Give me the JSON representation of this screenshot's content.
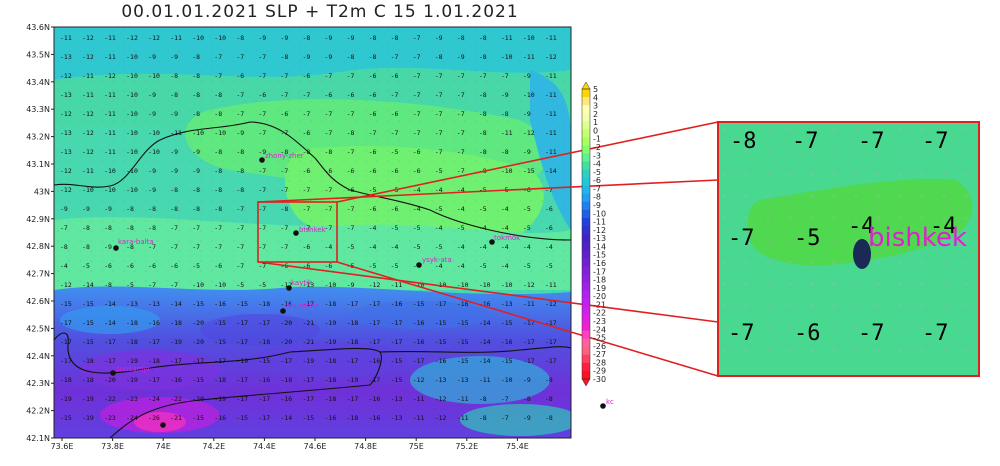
{
  "title": "00.01.01.2021 SLP + T2m C 15 1.01.2021",
  "map": {
    "lat_labels": [
      "43.6N",
      "43.5N",
      "43.4N",
      "43.3N",
      "43.2N",
      "43.1N",
      "43N",
      "42.9N",
      "42.8N",
      "42.7N",
      "42.6N",
      "42.5N",
      "42.4N",
      "42.3N",
      "42.2N",
      "42.1N"
    ],
    "lon_labels": [
      "73.6E",
      "73.8E",
      "74E",
      "74.2E",
      "74.4E",
      "74.6E",
      "74.8E",
      "75E",
      "75.2E",
      "75.4E"
    ],
    "grid_rows": [
      "-11 -12 -11 -12 -12 -11 -10 -10 -8 -9 -9 -8 -9 -9 -8 -8 -7 -9 -8 -8 -11 -10 -11",
      "-13 -12 -11 -10 -9 -9 -8 -7 -7 -7 -8 -9 -9 -8 -8 -7 -7 -8 -9 -8 -10 -11 -12",
      "-12 -11 -12 -10 -10 -8 -8 -7 -6 -7 -7 -6 -7 -7 -6 -6 -7 -7 -7 -7 -7 -9 -11",
      "-13 -11 -11 -10 -9 -8 -8 -8 -7 -6 -7 -7 -6 -6 -6 -7 -7 -7 -7 -8 -9 -10 -11",
      "-12 -12 -11 -10 -9 -9 -8 -8 -7 -7 -6 -7 -7 -7 -6 -6 -7 -7 -7 -8 -8 -9 -11",
      "-13 -12 -11 -10 -10 -11 -10 -10 -9 -7 -7 -6 -7 -8 -7 -7 -7 -7 -7 -8 -11 -12 -11",
      "-13 -12 -11 -10 -10 -9 -9 -8 -8 -9 -8 -8 -8 -7 -6 -5 -6 -7 -7 -8 -8 -9 -11",
      "-12 -11 -10 -10 -9 -9 -9 -8 -8 -7 -7 -6 -6 -6 -6 -6 -6 -5 -7 -8 -10 -15 -14",
      "-12 -10 -10 -10 -9 -8 -8 -8 -8 -7 -7 -7 -7 -6 -5 -5 -4 -4 -4 -5 -5 -6 -7",
      "-9 -9 -9 -8 -8 -8 -8 -8 -7 -7 -8 -7 -7 -7 -6 -6 -4 -5 -4 -5 -4 -5 -6",
      "-7 -8 -8 -8 -8 -7 -7 -7 -7 -7 -7 -7 -7 -7 -4 -5 -5 -4 -5 -4 -4 -5 -6",
      "-8 -8 -9 -8 -7 -7 -7 -7 -7 -7 -7 -6 -4 -5 -4 -4 -5 -5 -4 -4 -4 -4 -4",
      "-4 -5 -6 -6 -6 -6 -5 -6 -7 -7 -6 -6 -6 -5 -5 -5 -4 -4 -4 -5 -4 -5 -5",
      "-12 -14 -8 -5 -7 -7 -10 -10 -5 -5 -12 -13 -10 -9 -12 -11 -10 -10 -10 -10 -10 -12 -11",
      "-15 -15 -14 -13 -13 -14 -15 -16 -15 -18 -16 -17 -18 -17 -17 -16 -15 -17 -16 -16 -13 -11 -12",
      "-17 -15 -14 -18 -16 -18 -20 -15 -17 -17 -20 -21 -19 -18 -17 -17 -16 -15 -15 -14 -15 -17 -17",
      "-17 -15 -17 -18 -17 -19 -20 -15 -17 -18 -20 -21 -19 -18 -17 -17 -16 -15 -15 -14 -16 -17 -17",
      "-17 -18 -17 -19 -18 -17 -17 -17 -19 -15 -17 -19 -18 -17 -16 -15 -17 -16 -15 -14 -15 -17 -17",
      "-18 -18 -20 -19 -17 -16 -15 -18 -17 -16 -18 -17 -18 -19 -17 -15 -12 -13 -13 -11 -10 -9 -8",
      "-19 -19 -22 -23 -24 -22 -20 -19 -17 -17 -16 -17 -18 -17 -16 -13 -11 -12 -11 -8 -7 -8 -8",
      "-15 -19 -23 -24 -26 -21 -15 -16 -15 -17 -14 -15 -16 -18 -16 -13 -11 -12 -11 -8 -7 -9 -8"
    ],
    "cities": [
      {
        "name": "zhony-zher"
      },
      {
        "name": "kara-balta"
      },
      {
        "name": "bishkek"
      },
      {
        "name": "tokmok"
      },
      {
        "name": "ysyk-ata"
      },
      {
        "name": "kaytik"
      },
      {
        "name": "ala-archa"
      },
      {
        "name": "suusamyr"
      },
      {
        "name": "kc"
      }
    ]
  },
  "colorbar": {
    "labels": [
      "5",
      "4",
      "3",
      "2",
      "1",
      "0",
      "-1",
      "-2",
      "-3",
      "-4",
      "-5",
      "-6",
      "-7",
      "-8",
      "-9",
      "-10",
      "-11",
      "-12",
      "-13",
      "-14",
      "-15",
      "-16",
      "-17",
      "-18",
      "-19",
      "-20",
      "-21",
      "-22",
      "-23",
      "-24",
      "-25",
      "-26",
      "-27",
      "-28",
      "-29",
      "-30"
    ],
    "colors": [
      "#ffd700",
      "#ffe680",
      "#ffffb0",
      "#f0ffb0",
      "#dfff90",
      "#c8ff70",
      "#a8ff60",
      "#80ff70",
      "#60f090",
      "#40e0a0",
      "#30d0c0",
      "#20c8d8",
      "#20b8e8",
      "#20a0f0",
      "#2080f0",
      "#2060e8",
      "#2040e0",
      "#3030d0",
      "#4020c8",
      "#5020c0",
      "#6020c8",
      "#7020d0",
      "#8020d8",
      "#9020e0",
      "#a020e8",
      "#b020f0",
      "#c020f0",
      "#d020e8",
      "#e020e0",
      "#f020d0",
      "#ff40c0",
      "#ff60a0",
      "#ff6080",
      "#ff4060",
      "#ff2040",
      "#ff1020"
    ]
  },
  "zoom": {
    "values_top": [
      "-8",
      "-7",
      "-7",
      "-7"
    ],
    "values_mid": [
      "-7",
      "-5",
      "-4",
      "-4"
    ],
    "values_bottom": [
      "-7",
      "-6",
      "-7",
      "-7"
    ],
    "city_label": "bishkek"
  }
}
